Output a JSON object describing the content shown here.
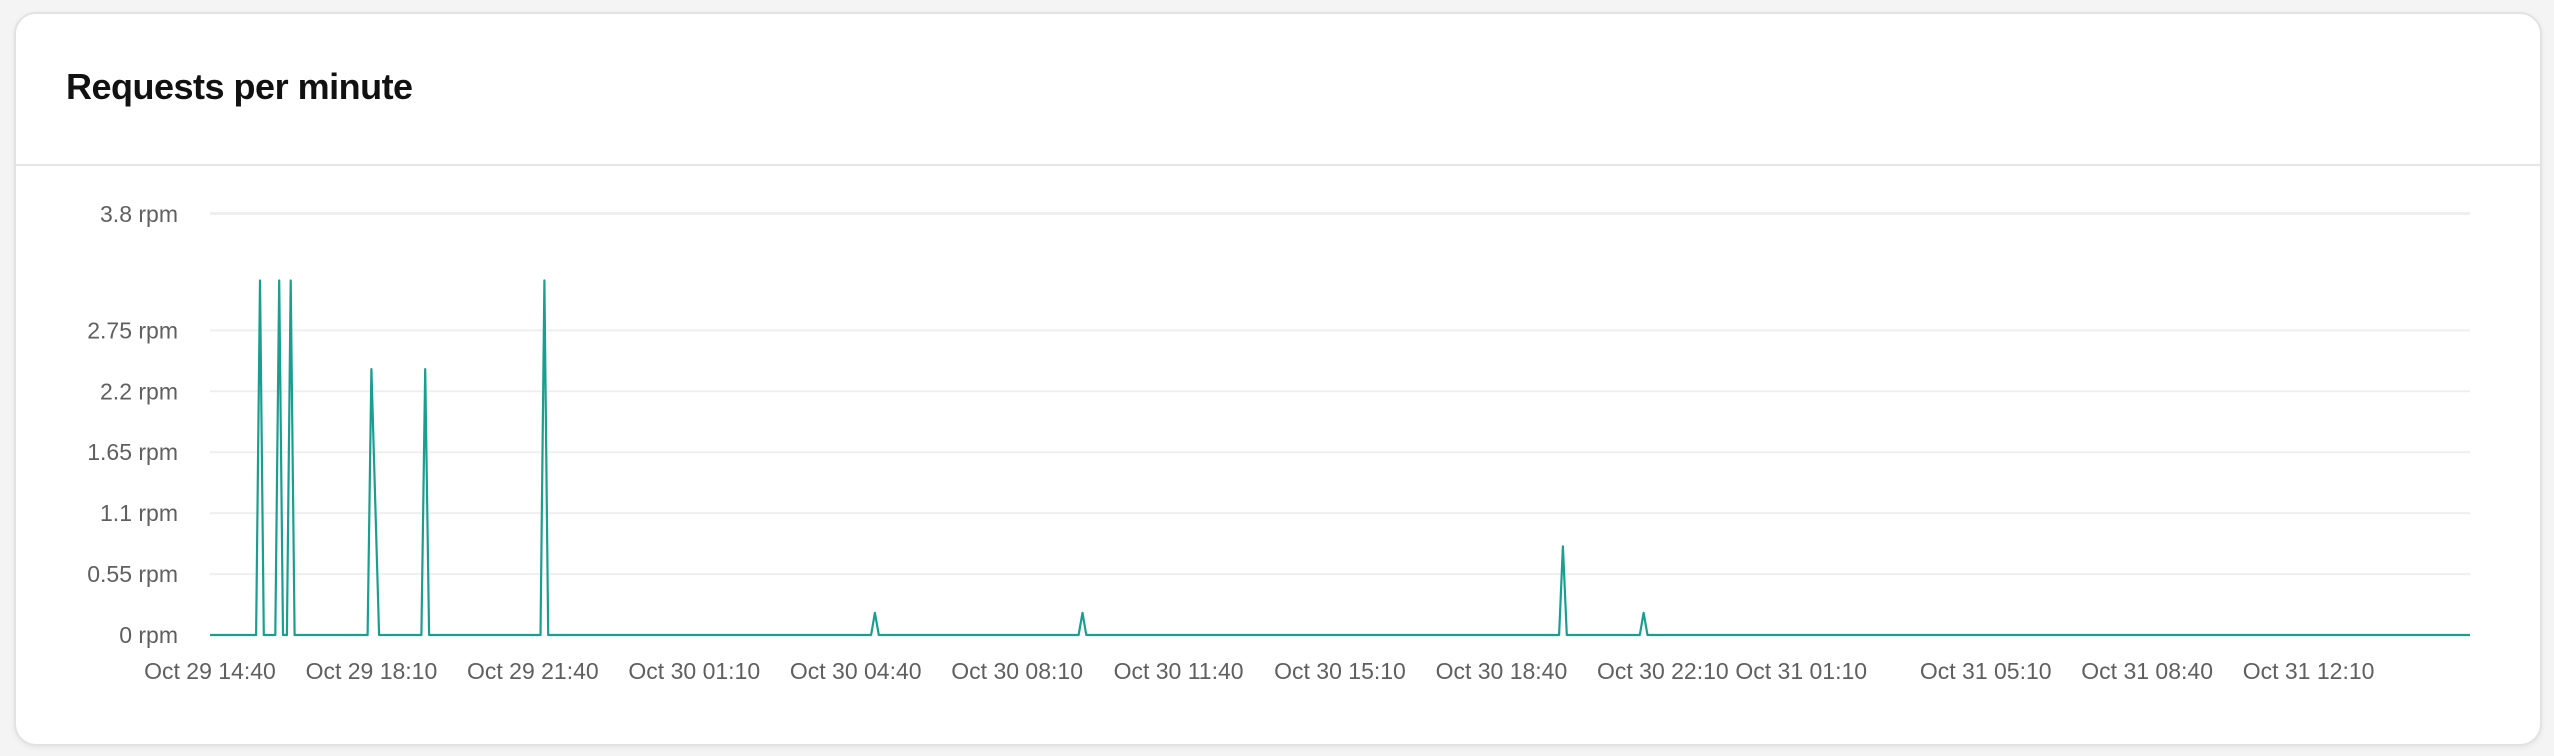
{
  "card": {
    "title": "Requests per minute"
  },
  "colors": {
    "line": "#1a9e8f",
    "grid": "#efefef",
    "axis_text": "#5f5f5f"
  },
  "chart_data": {
    "type": "line",
    "title": "Requests per minute",
    "xlabel": "",
    "ylabel": "",
    "grid": true,
    "ylim": [
      0,
      3.8
    ],
    "y_ticks": [
      {
        "value": 0,
        "label": "0 rpm"
      },
      {
        "value": 0.55,
        "label": "0.55 rpm"
      },
      {
        "value": 1.1,
        "label": "1.1 rpm"
      },
      {
        "value": 1.65,
        "label": "1.65 rpm"
      },
      {
        "value": 2.2,
        "label": "2.2 rpm"
      },
      {
        "value": 2.75,
        "label": "2.75 rpm"
      },
      {
        "value": 3.8,
        "label": "3.8 rpm"
      }
    ],
    "xlim": [
      "Oct 29 14:40",
      "Oct 31 15:40"
    ],
    "x_ticks": [
      "Oct 29 14:40",
      "Oct 29 18:10",
      "Oct 29 21:40",
      "Oct 30 01:10",
      "Oct 30 04:40",
      "Oct 30 08:10",
      "Oct 30 11:40",
      "Oct 30 15:10",
      "Oct 30 18:40",
      "Oct 30 22:10",
      "Oct 31 01:10",
      "Oct 31 05:10",
      "Oct 31 08:40",
      "Oct 31 12:10"
    ],
    "series": [
      {
        "points": [
          {
            "x": "Oct 29 14:40",
            "y": 0
          },
          {
            "x": "Oct 29 15:40",
            "y": 0
          },
          {
            "x": "Oct 29 15:45",
            "y": 3.2
          },
          {
            "x": "Oct 29 15:50",
            "y": 0
          },
          {
            "x": "Oct 29 16:05",
            "y": 0
          },
          {
            "x": "Oct 29 16:10",
            "y": 3.2
          },
          {
            "x": "Oct 29 16:15",
            "y": 0
          },
          {
            "x": "Oct 29 16:20",
            "y": 0
          },
          {
            "x": "Oct 29 16:25",
            "y": 3.2
          },
          {
            "x": "Oct 29 16:30",
            "y": 0
          },
          {
            "x": "Oct 29 18:05",
            "y": 0
          },
          {
            "x": "Oct 29 18:10",
            "y": 2.4
          },
          {
            "x": "Oct 29 18:20",
            "y": 0
          },
          {
            "x": "Oct 29 19:15",
            "y": 0
          },
          {
            "x": "Oct 29 19:20",
            "y": 2.4
          },
          {
            "x": "Oct 29 19:25",
            "y": 0
          },
          {
            "x": "Oct 29 21:50",
            "y": 0
          },
          {
            "x": "Oct 29 21:55",
            "y": 3.2
          },
          {
            "x": "Oct 29 22:00",
            "y": 0
          },
          {
            "x": "Oct 30 05:00",
            "y": 0
          },
          {
            "x": "Oct 30 05:05",
            "y": 0.2
          },
          {
            "x": "Oct 30 05:10",
            "y": 0
          },
          {
            "x": "Oct 30 09:30",
            "y": 0
          },
          {
            "x": "Oct 30 09:35",
            "y": 0.2
          },
          {
            "x": "Oct 30 09:40",
            "y": 0
          },
          {
            "x": "Oct 30 19:55",
            "y": 0
          },
          {
            "x": "Oct 30 20:00",
            "y": 0.8
          },
          {
            "x": "Oct 30 20:05",
            "y": 0
          },
          {
            "x": "Oct 30 21:40",
            "y": 0
          },
          {
            "x": "Oct 30 21:45",
            "y": 0.2
          },
          {
            "x": "Oct 30 21:50",
            "y": 0
          },
          {
            "x": "Oct 31 15:40",
            "y": 0
          }
        ]
      }
    ]
  }
}
